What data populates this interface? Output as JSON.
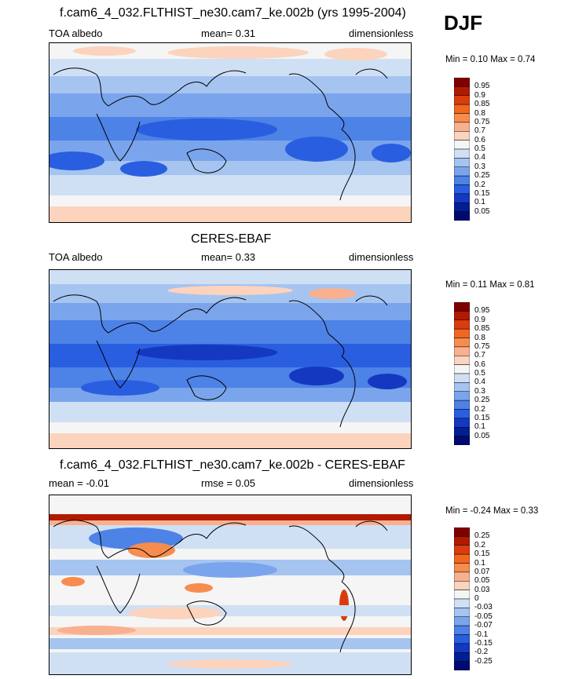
{
  "season": "DJF",
  "panels": [
    {
      "title": "f.cam6_4_032.FLTHIST_ne30.cam7_ke.002b (yrs 1995-2004)",
      "left": "TOA albedo",
      "center": "mean=   0.31",
      "right": "dimensionless",
      "minmax": "Min =  0.10 Max =  0.74",
      "levels": [
        "0.95",
        "0.9",
        "0.85",
        "0.8",
        "0.75",
        "0.7",
        "0.6",
        "0.5",
        "0.4",
        "0.3",
        "0.25",
        "0.2",
        "0.15",
        "0.1",
        "0.05"
      ]
    },
    {
      "title": "CERES-EBAF",
      "left": "TOA albedo",
      "center": "mean=   0.33",
      "right": "dimensionless",
      "minmax": "Min =  0.11 Max =  0.81",
      "levels": [
        "0.95",
        "0.9",
        "0.85",
        "0.8",
        "0.75",
        "0.7",
        "0.6",
        "0.5",
        "0.4",
        "0.3",
        "0.25",
        "0.2",
        "0.15",
        "0.1",
        "0.05"
      ]
    },
    {
      "title": "f.cam6_4_032.FLTHIST_ne30.cam7_ke.002b - CERES-EBAF",
      "left": "mean =  -0.01",
      "center": "rmse =   0.05",
      "right": "dimensionless",
      "minmax": "Min =  -0.24 Max =   0.33",
      "levels": [
        "0.25",
        "0.2",
        "0.15",
        "0.1",
        "0.07",
        "0.05",
        "0.03",
        "0",
        "-0.03",
        "-0.05",
        "-0.07",
        "-0.1",
        "-0.15",
        "-0.2",
        "-0.25"
      ]
    }
  ],
  "colors": {
    "scale": [
      "#7f0000",
      "#b21a00",
      "#d93d0f",
      "#f2661f",
      "#f78c4f",
      "#f9b08f",
      "#fcd3bd",
      "#f5f5f5",
      "#cfe0f5",
      "#a5c4f0",
      "#7aa5ec",
      "#4d82e6",
      "#2a5ee0",
      "#1438c0",
      "#001f96",
      "#000a70"
    ]
  }
}
